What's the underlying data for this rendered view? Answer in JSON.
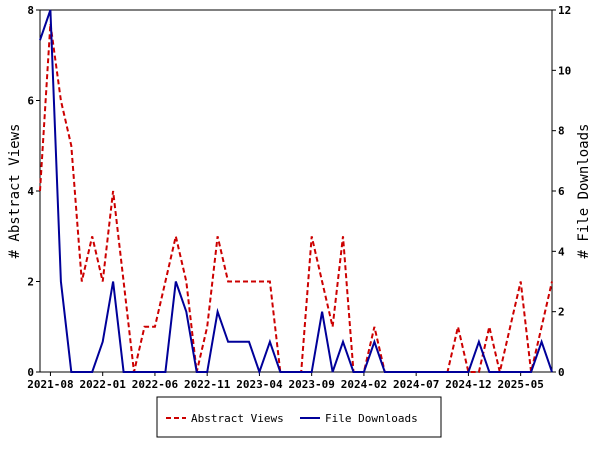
{
  "chart_data": {
    "type": "line",
    "x": [
      "2021-07",
      "2021-08",
      "2021-09",
      "2021-10",
      "2021-11",
      "2021-12",
      "2022-01",
      "2022-02",
      "2022-03",
      "2022-04",
      "2022-05",
      "2022-06",
      "2022-07",
      "2022-08",
      "2022-09",
      "2022-10",
      "2022-11",
      "2022-12",
      "2023-01",
      "2023-02",
      "2023-03",
      "2023-04",
      "2023-05",
      "2023-06",
      "2023-07",
      "2023-08",
      "2023-09",
      "2023-10",
      "2023-11",
      "2023-12",
      "2024-01",
      "2024-02",
      "2024-03",
      "2024-04",
      "2024-05",
      "2024-06",
      "2024-07",
      "2024-08",
      "2024-09",
      "2024-10",
      "2024-11",
      "2024-12",
      "2025-01",
      "2025-02",
      "2025-03",
      "2025-04",
      "2025-05",
      "2025-06",
      "2025-07",
      "2025-08"
    ],
    "series": [
      {
        "name": "Abstract Views",
        "axis": "left",
        "color": "#cc0000",
        "style": "dashed",
        "values": [
          4,
          7.7,
          6,
          5,
          2,
          3,
          2,
          4,
          2,
          0,
          1,
          1,
          2,
          3,
          2,
          0,
          1,
          3,
          2,
          2,
          2,
          2,
          2,
          0,
          0,
          0,
          3,
          2,
          1,
          3,
          0,
          0,
          1,
          0,
          0,
          0,
          0,
          0,
          0,
          0,
          1,
          0,
          0,
          1,
          0,
          1,
          2,
          0,
          1,
          2
        ]
      },
      {
        "name": "File Downloads",
        "axis": "right",
        "color": "#000099",
        "style": "solid",
        "values": [
          11,
          12,
          3,
          0,
          0,
          0,
          1,
          3,
          0,
          0,
          0,
          0,
          0,
          3,
          2,
          0,
          0,
          2,
          1,
          1,
          1,
          0,
          1,
          0,
          0,
          0,
          0,
          2,
          0,
          1,
          0,
          0,
          1,
          0,
          0,
          0,
          0,
          0,
          0,
          0,
          0,
          0,
          1,
          0,
          0,
          0,
          0,
          0,
          1,
          0
        ]
      }
    ],
    "x_tick_labels": [
      "2021-08",
      "2022-01",
      "2022-06",
      "2022-11",
      "2023-04",
      "2023-09",
      "2024-02",
      "2024-07",
      "2024-12",
      "2025-05"
    ],
    "y_left": {
      "label": "# Abstract Views",
      "lim": [
        0,
        8
      ],
      "ticks": [
        0,
        2,
        4,
        6,
        8
      ]
    },
    "y_right": {
      "label": "# File Downloads",
      "lim": [
        0,
        12
      ],
      "ticks": [
        0,
        2,
        4,
        6,
        8,
        10,
        12
      ]
    },
    "grid": false,
    "legend_position": "bottom-center"
  }
}
